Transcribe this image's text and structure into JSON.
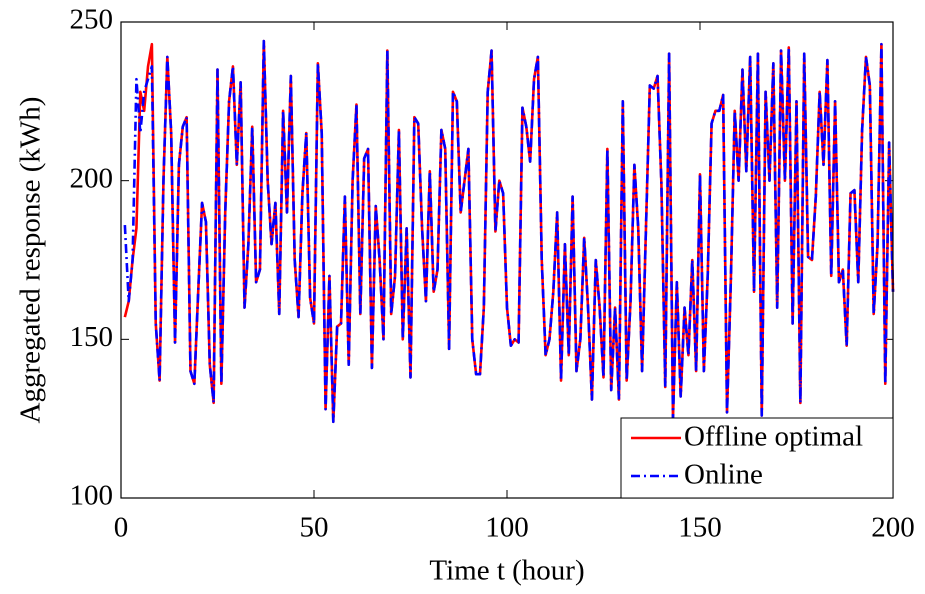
{
  "chart_data": {
    "type": "line",
    "xlabel": "Time t (hour)",
    "ylabel": "Aggregated response (kWh)",
    "x": [
      1,
      2,
      3,
      4,
      5,
      6,
      7,
      8,
      9,
      10,
      11,
      12,
      13,
      14,
      15,
      16,
      17,
      18,
      19,
      20,
      21,
      22,
      23,
      24,
      25,
      26,
      27,
      28,
      29,
      30,
      31,
      32,
      33,
      34,
      35,
      36,
      37,
      38,
      39,
      40,
      41,
      42,
      43,
      44,
      45,
      46,
      47,
      48,
      49,
      50,
      51,
      52,
      53,
      54,
      55,
      56,
      57,
      58,
      59,
      60,
      61,
      62,
      63,
      64,
      65,
      66,
      67,
      68,
      69,
      70,
      71,
      72,
      73,
      74,
      75,
      76,
      77,
      78,
      79,
      80,
      81,
      82,
      83,
      84,
      85,
      86,
      87,
      88,
      89,
      90,
      91,
      92,
      93,
      94,
      95,
      96,
      97,
      98,
      99,
      100,
      101,
      102,
      103,
      104,
      105,
      106,
      107,
      108,
      109,
      110,
      111,
      112,
      113,
      114,
      115,
      116,
      117,
      118,
      119,
      120,
      121,
      122,
      123,
      124,
      125,
      126,
      127,
      128,
      129,
      130,
      131,
      132,
      133,
      134,
      135,
      136,
      137,
      138,
      139,
      140,
      141,
      142,
      143,
      144,
      145,
      146,
      147,
      148,
      149,
      150,
      151,
      152,
      153,
      154,
      155,
      156,
      157,
      158,
      159,
      160,
      161,
      162,
      163,
      164,
      165,
      166,
      167,
      168,
      169,
      170,
      171,
      172,
      173,
      174,
      175,
      176,
      177,
      178,
      179,
      180,
      181,
      182,
      183,
      184,
      185,
      186,
      187,
      188,
      189,
      190,
      191,
      192,
      193,
      194,
      195,
      196,
      197,
      198,
      199,
      200
    ],
    "series": [
      {
        "name": "Offline optimal",
        "color": "#ff0000",
        "style": "solid",
        "values": [
          157,
          162,
          175,
          185,
          228,
          222,
          236,
          243,
          155,
          137,
          200,
          239,
          215,
          149,
          205,
          217,
          220,
          140,
          136,
          165,
          193,
          187,
          142,
          130,
          235,
          136,
          190,
          225,
          236,
          205,
          231,
          160,
          180,
          217,
          168,
          172,
          244,
          200,
          180,
          193,
          158,
          222,
          190,
          233,
          175,
          157,
          196,
          215,
          163,
          155,
          237,
          215,
          128,
          170,
          124,
          154,
          155,
          195,
          142,
          200,
          224,
          158,
          207,
          210,
          141,
          192,
          175,
          150,
          241,
          158,
          170,
          216,
          150,
          185,
          138,
          220,
          218,
          185,
          162,
          203,
          165,
          172,
          216,
          210,
          147,
          228,
          225,
          190,
          200,
          210,
          150,
          139,
          139,
          160,
          228,
          241,
          184,
          200,
          196,
          160,
          148,
          150,
          149,
          223,
          217,
          206,
          232,
          239,
          175,
          145,
          150,
          165,
          190,
          137,
          180,
          145,
          195,
          140,
          150,
          182,
          160,
          131,
          175,
          160,
          138,
          210,
          134,
          160,
          131,
          225,
          137,
          162,
          205,
          185,
          140,
          185,
          230,
          229,
          233,
          199,
          135,
          240,
          125,
          168,
          132,
          160,
          145,
          175,
          140,
          202,
          140,
          170,
          218,
          222,
          222,
          227,
          127,
          169,
          222,
          200,
          235,
          203,
          239,
          165,
          240,
          126,
          228,
          200,
          237,
          160,
          241,
          200,
          242,
          155,
          225,
          130,
          240,
          176,
          175,
          195,
          228,
          205,
          238,
          170,
          225,
          168,
          172,
          148,
          196,
          197,
          168,
          216,
          239,
          230,
          158,
          180,
          243,
          136,
          212,
          165
        ]
      },
      {
        "name": "Online",
        "color": "#0000ff",
        "style": "dashdot",
        "values": [
          186,
          162,
          175,
          232,
          215,
          228,
          232,
          236,
          155,
          137,
          200,
          239,
          215,
          149,
          205,
          217,
          220,
          140,
          136,
          165,
          193,
          187,
          142,
          130,
          235,
          136,
          190,
          225,
          236,
          205,
          231,
          160,
          180,
          217,
          168,
          172,
          244,
          200,
          180,
          193,
          158,
          222,
          190,
          233,
          175,
          157,
          196,
          215,
          163,
          155,
          237,
          215,
          128,
          170,
          124,
          154,
          155,
          195,
          142,
          200,
          224,
          158,
          207,
          210,
          141,
          192,
          175,
          150,
          241,
          158,
          170,
          216,
          150,
          185,
          138,
          220,
          218,
          185,
          162,
          203,
          165,
          172,
          216,
          210,
          147,
          228,
          225,
          190,
          200,
          210,
          150,
          139,
          139,
          160,
          228,
          241,
          184,
          200,
          196,
          160,
          148,
          150,
          149,
          223,
          217,
          206,
          232,
          239,
          175,
          145,
          150,
          165,
          190,
          137,
          180,
          145,
          195,
          140,
          150,
          182,
          160,
          131,
          175,
          160,
          138,
          210,
          134,
          160,
          131,
          225,
          137,
          162,
          205,
          185,
          140,
          185,
          230,
          229,
          233,
          199,
          135,
          240,
          125,
          168,
          132,
          160,
          145,
          175,
          140,
          202,
          140,
          170,
          218,
          222,
          222,
          227,
          127,
          169,
          222,
          200,
          235,
          203,
          239,
          165,
          240,
          126,
          228,
          200,
          237,
          160,
          241,
          200,
          242,
          155,
          225,
          130,
          240,
          176,
          175,
          195,
          228,
          205,
          238,
          170,
          225,
          168,
          172,
          148,
          196,
          197,
          168,
          216,
          239,
          230,
          158,
          180,
          243,
          136,
          212,
          165
        ]
      }
    ],
    "xlim": [
      0,
      200
    ],
    "xticks": [
      0,
      50,
      100,
      150,
      200
    ],
    "ylim": [
      100,
      250
    ],
    "yticks": [
      100,
      150,
      200,
      250
    ],
    "legend": "lower right"
  }
}
